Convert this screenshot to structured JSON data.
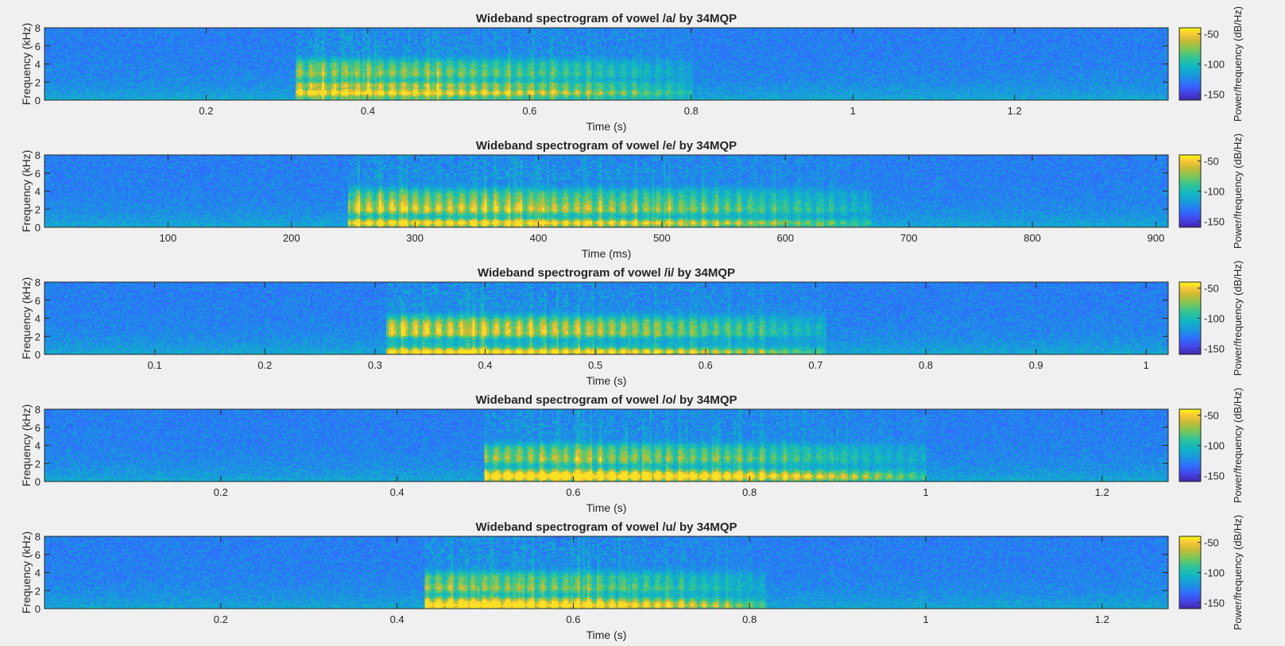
{
  "figure": {
    "background": "#f0f0f0",
    "colormap": "parula",
    "colorbar_label": "Power/frequency (dB/Hz)"
  },
  "chart_data": [
    {
      "type": "heatmap",
      "title": "Wideband spectrogram of vowel /a/ by 34MQP",
      "xlabel": "Time (s)",
      "ylabel": "Frequency (kHz)",
      "xlim": [
        0.0,
        1.39
      ],
      "ylim": [
        0,
        8
      ],
      "xticks": [
        0.2,
        0.4,
        0.6,
        0.8,
        1,
        1.2
      ],
      "yticks": [
        0,
        2,
        4,
        6,
        8
      ],
      "clim": [
        -160,
        -40
      ],
      "cticks": [
        -150,
        -100,
        -50
      ],
      "voiced_segment": {
        "onset": 0.31,
        "offset": 0.8
      },
      "formants_khz": [
        0.8,
        1.6,
        2.9,
        3.9
      ],
      "power_range_db": [
        -150,
        -45
      ]
    },
    {
      "type": "heatmap",
      "title": "Wideband spectrogram of vowel /e/ by 34MQP",
      "xlabel": "Time (ms)",
      "ylabel": "Frequency (kHz)",
      "xlim": [
        0,
        910
      ],
      "ylim": [
        0,
        8
      ],
      "xticks": [
        100,
        200,
        300,
        400,
        500,
        600,
        700,
        800,
        900
      ],
      "yticks": [
        0,
        2,
        4,
        6,
        8
      ],
      "clim": [
        -160,
        -40
      ],
      "cticks": [
        -150,
        -100,
        -50
      ],
      "voiced_segment": {
        "onset": 245,
        "offset": 670
      },
      "formants_khz": [
        0.5,
        1.9,
        2.6,
        3.6
      ],
      "power_range_db": [
        -150,
        -45
      ]
    },
    {
      "type": "heatmap",
      "title": "Wideband spectrogram of vowel /i/ by 34MQP",
      "xlabel": "Time (s)",
      "ylabel": "Frequency (kHz)",
      "xlim": [
        0.0,
        1.02
      ],
      "ylim": [
        0,
        8
      ],
      "xticks": [
        0.1,
        0.2,
        0.3,
        0.4,
        0.5,
        0.6,
        0.7,
        0.8,
        0.9,
        1
      ],
      "yticks": [
        0,
        2,
        4,
        6,
        8
      ],
      "clim": [
        -160,
        -40
      ],
      "cticks": [
        -150,
        -100,
        -50
      ],
      "voiced_segment": {
        "onset": 0.31,
        "offset": 0.71
      },
      "formants_khz": [
        0.3,
        2.3,
        3.0,
        3.7
      ],
      "power_range_db": [
        -150,
        -45
      ]
    },
    {
      "type": "heatmap",
      "title": "Wideband spectrogram of vowel /o/ by 34MQP",
      "xlabel": "Time (s)",
      "ylabel": "Frequency (kHz)",
      "xlim": [
        0.0,
        1.275
      ],
      "ylim": [
        0,
        8
      ],
      "xticks": [
        0.2,
        0.4,
        0.6,
        0.8,
        1,
        1.2
      ],
      "yticks": [
        0,
        2,
        4,
        6,
        8
      ],
      "clim": [
        -160,
        -40
      ],
      "cticks": [
        -150,
        -100,
        -50
      ],
      "voiced_segment": {
        "onset": 0.5,
        "offset": 1.0
      },
      "formants_khz": [
        0.5,
        0.9,
        2.5,
        3.5
      ],
      "power_range_db": [
        -150,
        -45
      ]
    },
    {
      "type": "heatmap",
      "title": "Wideband spectrogram of vowel /u/ by 34MQP",
      "xlabel": "Time (s)",
      "ylabel": "Frequency (kHz)",
      "xlim": [
        0.0,
        1.275
      ],
      "ylim": [
        0,
        8
      ],
      "xticks": [
        0.2,
        0.4,
        0.6,
        0.8,
        1,
        1.2
      ],
      "yticks": [
        0,
        2,
        4,
        6,
        8
      ],
      "clim": [
        -160,
        -40
      ],
      "cticks": [
        -150,
        -100,
        -50
      ],
      "voiced_segment": {
        "onset": 0.43,
        "offset": 0.82
      },
      "formants_khz": [
        0.3,
        0.8,
        2.3,
        3.4
      ],
      "power_range_db": [
        -150,
        -45
      ]
    }
  ]
}
